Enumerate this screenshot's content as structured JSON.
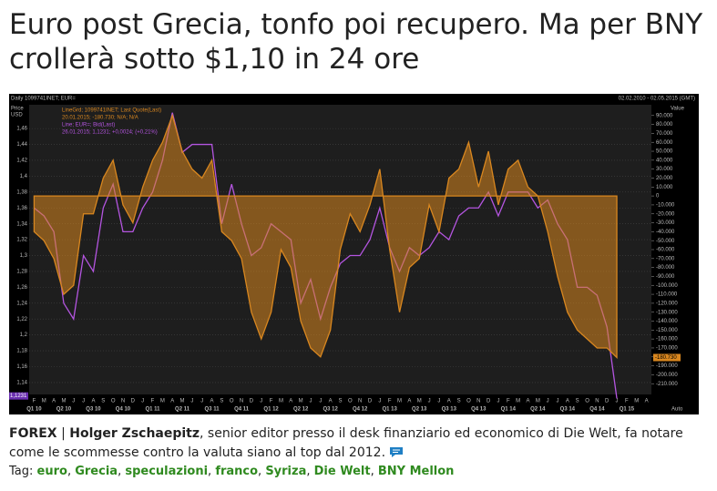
{
  "header": {
    "title": "Euro post Grecia, tonfo poi recupero. Ma per BNY crollerà sotto $1,10 in 24 ore"
  },
  "chart_data": {
    "type": "line-area",
    "top_left": "Daily 1099741INET; EUR=",
    "top_right": "02.02.2010 - 02.05.2015 (GMT)",
    "ylabel": [
      "Price",
      "USD"
    ],
    "y2label": "Value",
    "legend_lines": [
      "LineGrd; 1099741INET; Last Quote(Last)",
      "20.01.2015; -180.730; N/A; N/A",
      "Line; EUR=; Bid(Last)",
      "26.01.2015; 1,1231; +0,0024; (+0,21%)"
    ],
    "categories": [
      "F",
      "M",
      "A",
      "M",
      "J",
      "J",
      "A",
      "S",
      "O",
      "N",
      "D",
      "J",
      "F",
      "M",
      "A",
      "M",
      "J",
      "J",
      "A",
      "S",
      "O",
      "N",
      "D",
      "J",
      "F",
      "M",
      "A",
      "M",
      "J",
      "J",
      "A",
      "S",
      "O",
      "N",
      "D",
      "J",
      "F",
      "M",
      "A",
      "M",
      "J",
      "J",
      "A",
      "S",
      "O",
      "N",
      "D",
      "J",
      "F",
      "M",
      "A",
      "M",
      "J",
      "J",
      "A",
      "S",
      "O",
      "N",
      "D",
      "J",
      "F",
      "M",
      "A"
    ],
    "quarters": [
      "Q1 10",
      "Q2 10",
      "Q3 10",
      "Q4 10",
      "Q1 11",
      "Q2 11",
      "Q3 11",
      "Q4 11",
      "Q1 12",
      "Q2 12",
      "Q3 12",
      "Q4 12",
      "Q1 13",
      "Q2 13",
      "Q3 13",
      "Q4 13",
      "Q1 14",
      "Q2 14",
      "Q3 14",
      "Q4 14",
      "Q1 15"
    ],
    "series": [
      {
        "name": "EUR=",
        "color": "#b455e0",
        "values": [
          1.36,
          1.35,
          1.33,
          1.24,
          1.22,
          1.3,
          1.28,
          1.36,
          1.39,
          1.33,
          1.33,
          1.36,
          1.38,
          1.42,
          1.48,
          1.43,
          1.44,
          1.44,
          1.44,
          1.34,
          1.39,
          1.34,
          1.3,
          1.31,
          1.34,
          1.33,
          1.32,
          1.24,
          1.27,
          1.22,
          1.26,
          1.29,
          1.3,
          1.3,
          1.32,
          1.36,
          1.31,
          1.28,
          1.31,
          1.3,
          1.31,
          1.33,
          1.32,
          1.35,
          1.36,
          1.36,
          1.38,
          1.35,
          1.38,
          1.38,
          1.38,
          1.36,
          1.37,
          1.34,
          1.32,
          1.26,
          1.26,
          1.25,
          1.21,
          1.12,
          null,
          null,
          null
        ]
      },
      {
        "name": "1099741INET",
        "color": "#d9871f",
        "axis": "y2",
        "values": [
          -40000,
          -50000,
          -70000,
          -110000,
          -100000,
          -20000,
          -20000,
          20000,
          40000,
          -10000,
          -30000,
          10000,
          40000,
          60000,
          90000,
          50000,
          30000,
          20000,
          40000,
          -40000,
          -50000,
          -70000,
          -130000,
          -160000,
          -130000,
          -60000,
          -80000,
          -140000,
          -170000,
          -180000,
          -150000,
          -60000,
          -20000,
          -40000,
          -10000,
          30000,
          -60000,
          -130000,
          -80000,
          -70000,
          -10000,
          -40000,
          20000,
          30000,
          60000,
          10000,
          50000,
          -10000,
          30000,
          40000,
          10000,
          0,
          -40000,
          -90000,
          -130000,
          -150000,
          -160000,
          -170000,
          -170000,
          -180730,
          null,
          null,
          null
        ]
      }
    ],
    "price_marker": {
      "value": 1.1231,
      "label": "1,1231"
    },
    "value_marker": {
      "value": -180730,
      "label": "-180.730"
    },
    "scale_mode": "Auto",
    "ylim": [
      1.125,
      1.49
    ],
    "yticks": [
      {
        "value": 1.46,
        "label": "1,46"
      },
      {
        "value": 1.44,
        "label": "1,44"
      },
      {
        "value": 1.42,
        "label": "1,42"
      },
      {
        "value": 1.4,
        "label": "1,4"
      },
      {
        "value": 1.38,
        "label": "1,38"
      },
      {
        "value": 1.36,
        "label": "1,36"
      },
      {
        "value": 1.34,
        "label": "1,34"
      },
      {
        "value": 1.32,
        "label": "1,32"
      },
      {
        "value": 1.3,
        "label": "1,3"
      },
      {
        "value": 1.28,
        "label": "1,28"
      },
      {
        "value": 1.26,
        "label": "1,26"
      },
      {
        "value": 1.24,
        "label": "1,24"
      },
      {
        "value": 1.22,
        "label": "1,22"
      },
      {
        "value": 1.2,
        "label": "1,2"
      },
      {
        "value": 1.18,
        "label": "1,18"
      },
      {
        "value": 1.16,
        "label": "1,16"
      },
      {
        "value": 1.14,
        "label": "1,14"
      }
    ],
    "y2lim": [
      -222000,
      102000
    ],
    "y2ticks": [
      {
        "value": 90000,
        "label": "90.000"
      },
      {
        "value": 80000,
        "label": "80.000"
      },
      {
        "value": 70000,
        "label": "70.000"
      },
      {
        "value": 60000,
        "label": "60.000"
      },
      {
        "value": 50000,
        "label": "50.000"
      },
      {
        "value": 40000,
        "label": "40.000"
      },
      {
        "value": 30000,
        "label": "30.000"
      },
      {
        "value": 20000,
        "label": "20.000"
      },
      {
        "value": 10000,
        "label": "10.000"
      },
      0,
      {
        "value": -10000,
        "label": "-10.000"
      },
      {
        "value": -20000,
        "label": "-20.000"
      },
      {
        "value": -30000,
        "label": "-30.000"
      },
      {
        "value": -40000,
        "label": "-40.000"
      },
      {
        "value": -50000,
        "label": "-50.000"
      },
      {
        "value": -60000,
        "label": "-60.000"
      },
      {
        "value": -70000,
        "label": "-70.000"
      },
      {
        "value": -80000,
        "label": "-80.000"
      },
      {
        "value": -90000,
        "label": "-90.000"
      },
      {
        "value": -100000,
        "label": "-100.000"
      },
      {
        "value": -110000,
        "label": "-110.000"
      },
      {
        "value": -120000,
        "label": "-120.000"
      },
      {
        "value": -130000,
        "label": "-130.000"
      },
      {
        "value": -140000,
        "label": "-140.000"
      },
      {
        "value": -150000,
        "label": "-150.000"
      },
      {
        "value": -160000,
        "label": "-160.000"
      },
      {
        "value": -170000,
        "label": "-170.000"
      },
      {
        "value": -180000,
        "label": "-180.000"
      },
      {
        "value": -190000,
        "label": "-190.000"
      },
      {
        "value": -200000,
        "label": "-200.000"
      },
      {
        "value": -210000,
        "label": "-210.000"
      }
    ],
    "grid": true
  },
  "caption": {
    "segments": [
      "FOREX",
      "|",
      "Holger Zschaepitz",
      ", senior editor presso il desk finanziario ed economico di Die Welt, fa notare come le scommesse contro la valuta siano al top dal 2012."
    ]
  },
  "tags": {
    "label": "Tag:",
    "items": [
      "euro",
      "Grecia",
      "speculazioni",
      "franco",
      "Syriza",
      "Die Welt",
      "BNY Mellon"
    ]
  }
}
